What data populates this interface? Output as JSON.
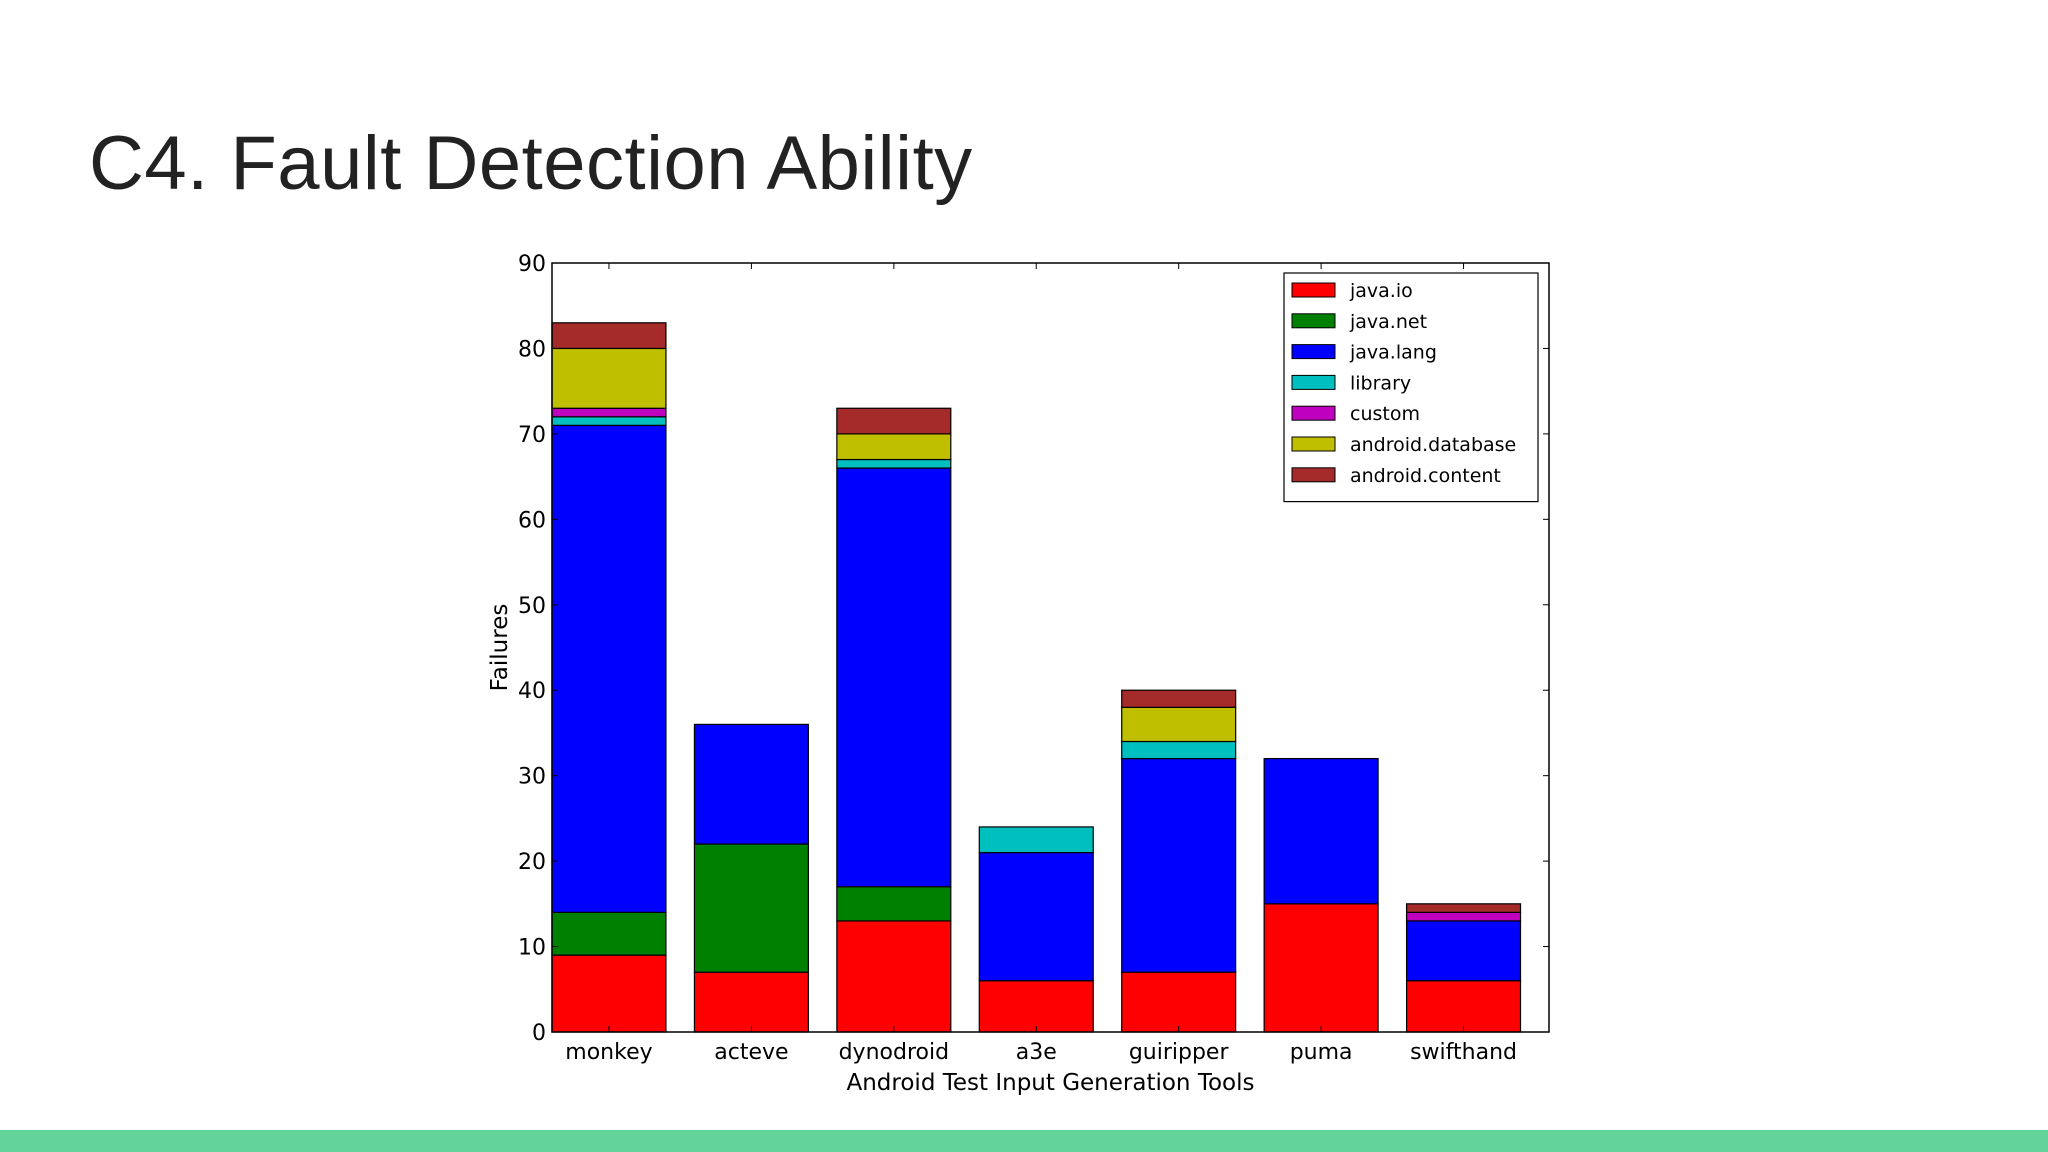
{
  "slide": {
    "title": "C4. Fault Detection Ability",
    "accent_bar_color": "#63d29b"
  },
  "chart_data": {
    "type": "bar",
    "stacked": true,
    "title": "",
    "xlabel": "Android Test Input Generation Tools",
    "ylabel": "Failures",
    "ylim": [
      0,
      90
    ],
    "yticks": [
      0,
      10,
      20,
      30,
      40,
      50,
      60,
      70,
      80,
      90
    ],
    "grid": false,
    "legend_position": "top-right",
    "categories": [
      "monkey",
      "acteve",
      "dynodroid",
      "a3e",
      "guiripper",
      "puma",
      "swifthand"
    ],
    "series": [
      {
        "name": "java.io",
        "color": "#ff0000",
        "values": [
          9,
          7,
          13,
          6,
          7,
          15,
          6
        ]
      },
      {
        "name": "java.net",
        "color": "#008000",
        "values": [
          5,
          15,
          4,
          0,
          0,
          0,
          0
        ]
      },
      {
        "name": "java.lang",
        "color": "#0000ff",
        "values": [
          57,
          14,
          49,
          15,
          25,
          17,
          7
        ]
      },
      {
        "name": "library",
        "color": "#00bfbf",
        "values": [
          1,
          0,
          1,
          3,
          2,
          0,
          0
        ]
      },
      {
        "name": "custom",
        "color": "#bf00bf",
        "values": [
          1,
          0,
          0,
          0,
          0,
          0,
          1
        ]
      },
      {
        "name": "android.database",
        "color": "#bfbf00",
        "values": [
          7,
          0,
          3,
          0,
          4,
          0,
          0
        ]
      },
      {
        "name": "android.content",
        "color": "#a52a2a",
        "values": [
          3,
          0,
          3,
          0,
          2,
          0,
          1
        ]
      }
    ]
  }
}
